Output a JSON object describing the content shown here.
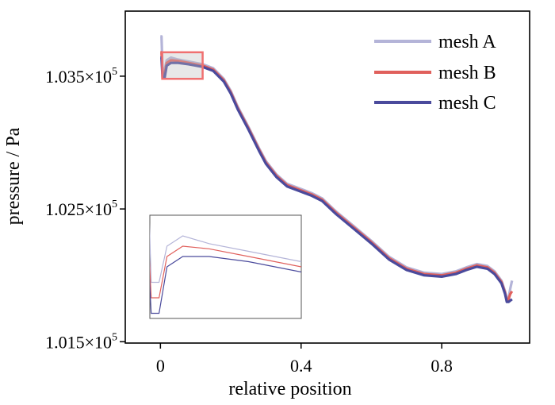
{
  "chart_data": {
    "type": "line",
    "xlabel": "relative position",
    "ylabel": "pressure / Pa",
    "xlim": [
      -0.1,
      1.05
    ],
    "ylim": [
      101490,
      103990
    ],
    "x_ticks": [
      {
        "value": 0,
        "label": "0"
      },
      {
        "value": 0.4,
        "label": "0.4"
      },
      {
        "value": 0.8,
        "label": "0.8"
      }
    ],
    "y_ticks": [
      {
        "value": 101500,
        "mantissa": "1.015",
        "exp": "5"
      },
      {
        "value": 102500,
        "mantissa": "1.025",
        "exp": "5"
      },
      {
        "value": 103500,
        "mantissa": "1.035",
        "exp": "5"
      }
    ],
    "legend_position": "top-right",
    "series": [
      {
        "name": "mesh A",
        "color": "#b4b4d8",
        "points": [
          [
            0,
            103800
          ],
          [
            0.003,
            103800
          ],
          [
            0.006,
            103550
          ],
          [
            0.012,
            103550
          ],
          [
            0.018,
            103620
          ],
          [
            0.03,
            103640
          ],
          [
            0.05,
            103625
          ],
          [
            0.08,
            103610
          ],
          [
            0.1,
            103600
          ],
          [
            0.12,
            103590
          ],
          [
            0.15,
            103560
          ],
          [
            0.18,
            103480
          ],
          [
            0.2,
            103390
          ],
          [
            0.22,
            103270
          ],
          [
            0.25,
            103120
          ],
          [
            0.28,
            102960
          ],
          [
            0.3,
            102860
          ],
          [
            0.33,
            102760
          ],
          [
            0.36,
            102690
          ],
          [
            0.4,
            102650
          ],
          [
            0.43,
            102620
          ],
          [
            0.46,
            102580
          ],
          [
            0.5,
            102480
          ],
          [
            0.55,
            102370
          ],
          [
            0.6,
            102260
          ],
          [
            0.65,
            102140
          ],
          [
            0.7,
            102060
          ],
          [
            0.75,
            102020
          ],
          [
            0.8,
            102010
          ],
          [
            0.84,
            102030
          ],
          [
            0.87,
            102060
          ],
          [
            0.9,
            102085
          ],
          [
            0.93,
            102070
          ],
          [
            0.95,
            102030
          ],
          [
            0.97,
            101960
          ],
          [
            0.98,
            101880
          ],
          [
            0.985,
            101820
          ],
          [
            0.99,
            101830
          ],
          [
            0.995,
            101900
          ],
          [
            1.0,
            101960
          ]
        ]
      },
      {
        "name": "mesh B",
        "color": "#e0605c",
        "points": [
          [
            0,
            103680
          ],
          [
            0.003,
            103680
          ],
          [
            0.006,
            103520
          ],
          [
            0.012,
            103520
          ],
          [
            0.018,
            103600
          ],
          [
            0.03,
            103620
          ],
          [
            0.05,
            103615
          ],
          [
            0.08,
            103600
          ],
          [
            0.1,
            103590
          ],
          [
            0.12,
            103580
          ],
          [
            0.15,
            103550
          ],
          [
            0.18,
            103470
          ],
          [
            0.2,
            103380
          ],
          [
            0.22,
            103260
          ],
          [
            0.25,
            103110
          ],
          [
            0.28,
            102950
          ],
          [
            0.3,
            102850
          ],
          [
            0.33,
            102750
          ],
          [
            0.36,
            102680
          ],
          [
            0.4,
            102640
          ],
          [
            0.43,
            102610
          ],
          [
            0.46,
            102570
          ],
          [
            0.5,
            102470
          ],
          [
            0.55,
            102360
          ],
          [
            0.6,
            102250
          ],
          [
            0.65,
            102130
          ],
          [
            0.7,
            102050
          ],
          [
            0.75,
            102010
          ],
          [
            0.8,
            102000
          ],
          [
            0.84,
            102020
          ],
          [
            0.87,
            102050
          ],
          [
            0.9,
            102075
          ],
          [
            0.93,
            102060
          ],
          [
            0.95,
            102020
          ],
          [
            0.97,
            101950
          ],
          [
            0.98,
            101870
          ],
          [
            0.985,
            101810
          ],
          [
            0.99,
            101820
          ],
          [
            0.995,
            101860
          ],
          [
            1.0,
            101880
          ]
        ]
      },
      {
        "name": "mesh C",
        "color": "#4a4a9c",
        "points": [
          [
            0,
            103640
          ],
          [
            0.003,
            103640
          ],
          [
            0.006,
            103490
          ],
          [
            0.012,
            103490
          ],
          [
            0.018,
            103580
          ],
          [
            0.03,
            103600
          ],
          [
            0.05,
            103600
          ],
          [
            0.08,
            103590
          ],
          [
            0.1,
            103580
          ],
          [
            0.12,
            103570
          ],
          [
            0.15,
            103540
          ],
          [
            0.18,
            103460
          ],
          [
            0.2,
            103370
          ],
          [
            0.22,
            103250
          ],
          [
            0.25,
            103100
          ],
          [
            0.28,
            102940
          ],
          [
            0.3,
            102840
          ],
          [
            0.33,
            102740
          ],
          [
            0.36,
            102670
          ],
          [
            0.4,
            102630
          ],
          [
            0.43,
            102600
          ],
          [
            0.46,
            102560
          ],
          [
            0.5,
            102460
          ],
          [
            0.55,
            102350
          ],
          [
            0.6,
            102240
          ],
          [
            0.65,
            102120
          ],
          [
            0.7,
            102040
          ],
          [
            0.75,
            102000
          ],
          [
            0.8,
            101990
          ],
          [
            0.84,
            102010
          ],
          [
            0.87,
            102040
          ],
          [
            0.9,
            102065
          ],
          [
            0.93,
            102050
          ],
          [
            0.95,
            102010
          ],
          [
            0.97,
            101940
          ],
          [
            0.98,
            101860
          ],
          [
            0.985,
            101800
          ],
          [
            0.99,
            101800
          ],
          [
            0.995,
            101810
          ],
          [
            1.0,
            101820
          ]
        ]
      }
    ],
    "zoom_region": {
      "x": [
        0.005,
        0.12
      ],
      "y": [
        103480,
        103680
      ]
    }
  }
}
